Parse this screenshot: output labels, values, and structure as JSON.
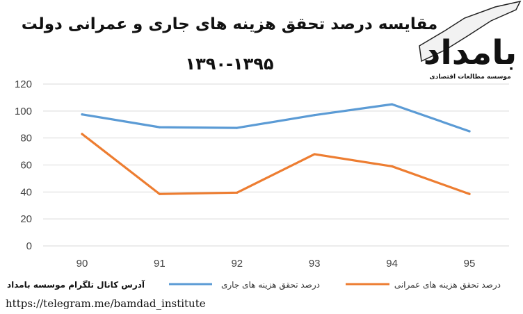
{
  "title_line1": "مقایسه درصد تحقق هزینه های جاری و عمرانی دولت",
  "title_line2": "۱۳۹۰-۱۳۹۵",
  "logo": {
    "name": "بامداد",
    "subtitle": "موسسه مطالعات اقتصادی"
  },
  "footer": {
    "channel_label": "آدرس کانال تلگرام موسسه بامداد",
    "url": "https://telegram.me/bamdad_institute"
  },
  "colors": {
    "series_current": "#5b9bd5",
    "series_capital": "#ed7d31",
    "grid": "#d9d9d9"
  },
  "chart_data": {
    "type": "line",
    "categories": [
      "90",
      "91",
      "92",
      "93",
      "94",
      "95"
    ],
    "ylim": [
      0,
      120
    ],
    "yticks": [
      0,
      20,
      40,
      60,
      80,
      100,
      120
    ],
    "grid": true,
    "legend_position": "bottom",
    "series": [
      {
        "name": "درصد تحقق هزینه های جاری",
        "values": [
          97.5,
          88,
          87.5,
          97,
          105,
          85
        ]
      },
      {
        "name": "درصد تحقق هزینه های عمرانی",
        "values": [
          83,
          38.5,
          39.5,
          68,
          59,
          38.5
        ]
      }
    ]
  }
}
